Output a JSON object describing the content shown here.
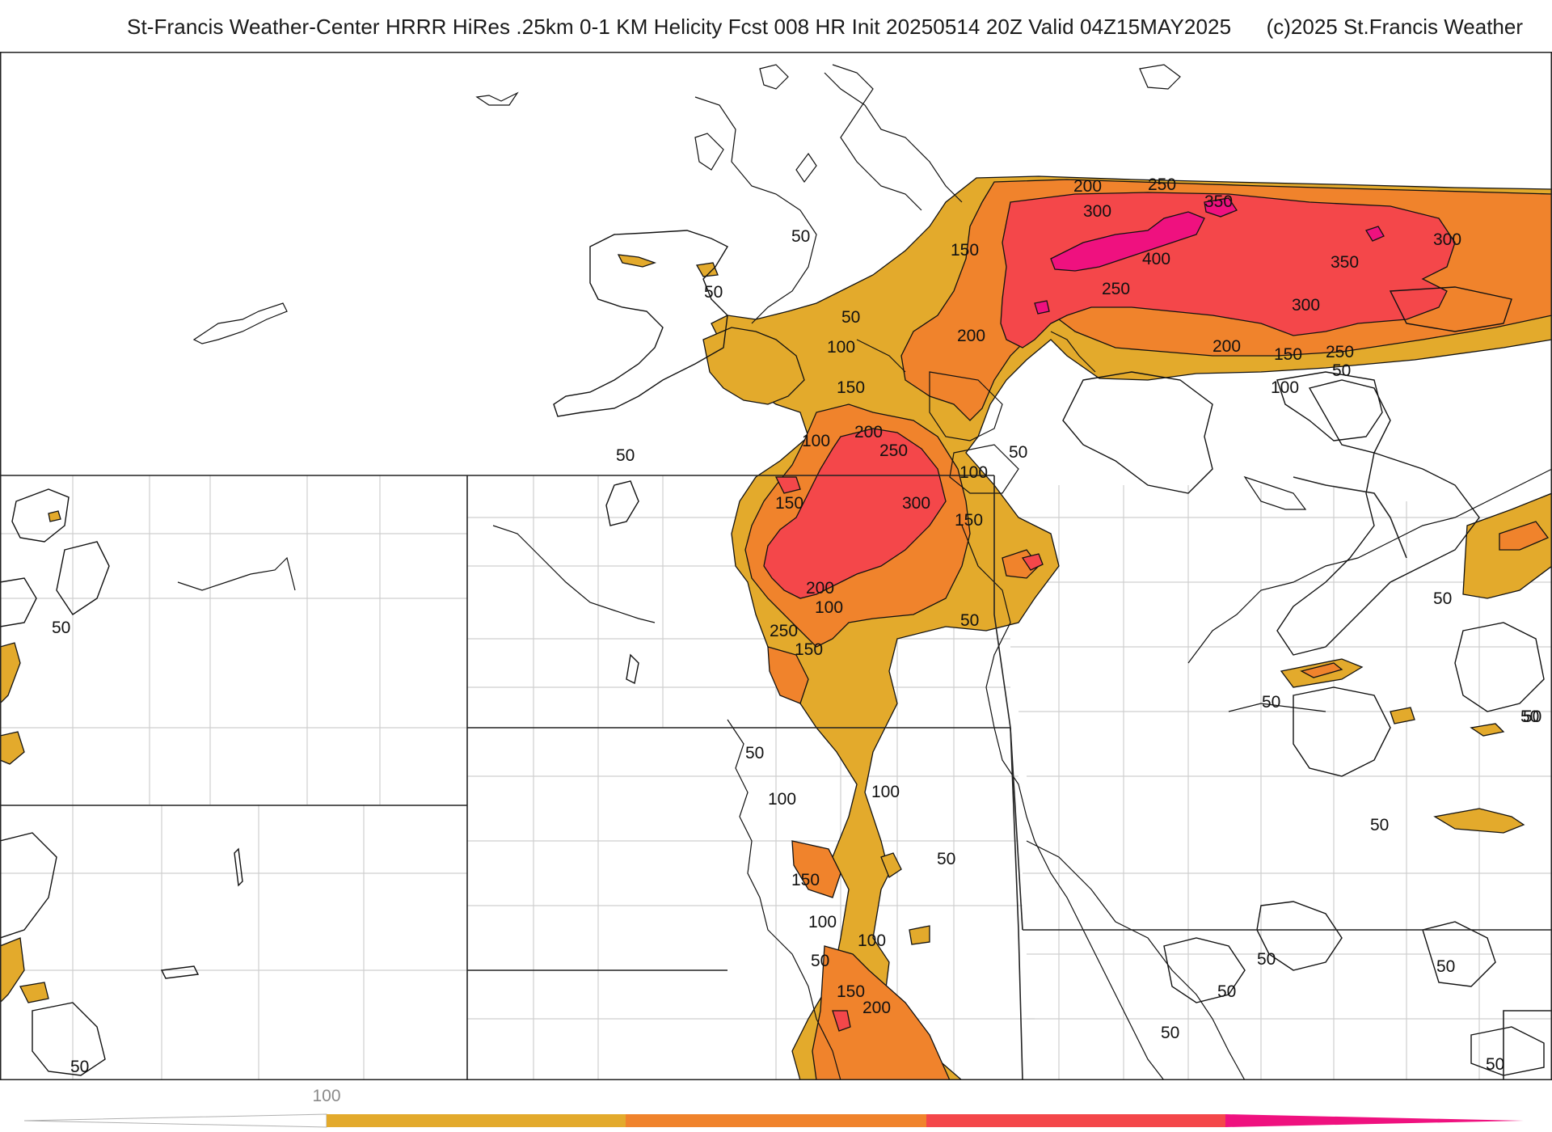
{
  "header": {
    "title": "St-Francis Weather-Center HRRR HiRes .25km 0-1 KM Helicity Fcst 008 HR Init 20250514 20Z  Valid 04Z15MAY2025",
    "copyright": "(c)2025 St.Francis Weather"
  },
  "colors": {
    "level_100": "#e3aa2c",
    "level_150": "#f0832c",
    "level_250": "#f4474a",
    "level_350": "#ef117f",
    "state_border": "#222222",
    "county_line": "#c9c9c9",
    "coastline": "#111111"
  },
  "colorbar": {
    "tick_label": "100",
    "segments": [
      "#e3aa2c",
      "#f0832c",
      "#f4474a",
      "#ef117f"
    ]
  },
  "contour_labels": [
    {
      "id": "c1",
      "text": "200"
    },
    {
      "id": "c2",
      "text": "250"
    },
    {
      "id": "c3",
      "text": "350"
    },
    {
      "id": "c4",
      "text": "300"
    },
    {
      "id": "c5",
      "text": "400"
    },
    {
      "id": "c6",
      "text": "300"
    },
    {
      "id": "c7",
      "text": "350"
    },
    {
      "id": "c8",
      "text": "250"
    },
    {
      "id": "c9",
      "text": "150"
    },
    {
      "id": "c10",
      "text": "50"
    },
    {
      "id": "c11",
      "text": "50"
    },
    {
      "id": "c12",
      "text": "50"
    },
    {
      "id": "c13",
      "text": "100"
    },
    {
      "id": "c14",
      "text": "200"
    },
    {
      "id": "c15",
      "text": "300"
    },
    {
      "id": "c16",
      "text": "200"
    },
    {
      "id": "c17",
      "text": "150"
    },
    {
      "id": "c18",
      "text": "250"
    },
    {
      "id": "c19",
      "text": "50"
    },
    {
      "id": "c20",
      "text": "100"
    },
    {
      "id": "c21",
      "text": "150"
    },
    {
      "id": "c22",
      "text": "100"
    },
    {
      "id": "c23",
      "text": "200"
    },
    {
      "id": "c24",
      "text": "250"
    },
    {
      "id": "c25",
      "text": "50"
    },
    {
      "id": "c26",
      "text": "50"
    },
    {
      "id": "c27",
      "text": "100"
    },
    {
      "id": "c28",
      "text": "150"
    },
    {
      "id": "c29",
      "text": "300"
    },
    {
      "id": "c30",
      "text": "150"
    },
    {
      "id": "c31",
      "text": "200"
    },
    {
      "id": "c32",
      "text": "100"
    },
    {
      "id": "c33",
      "text": "250"
    },
    {
      "id": "c34",
      "text": "150"
    },
    {
      "id": "c35",
      "text": "50"
    },
    {
      "id": "c36",
      "text": "50"
    },
    {
      "id": "c37",
      "text": "50"
    },
    {
      "id": "c38",
      "text": "50"
    },
    {
      "id": "c39",
      "text": "50"
    },
    {
      "id": "c40",
      "text": "100"
    },
    {
      "id": "c41",
      "text": "100"
    },
    {
      "id": "c42",
      "text": "50"
    },
    {
      "id": "c43",
      "text": "150"
    },
    {
      "id": "c44",
      "text": "100"
    },
    {
      "id": "c45",
      "text": "100"
    },
    {
      "id": "c46",
      "text": "50"
    },
    {
      "id": "c47",
      "text": "150"
    },
    {
      "id": "c48",
      "text": "200"
    },
    {
      "id": "c49",
      "text": "50"
    },
    {
      "id": "c50",
      "text": "50"
    },
    {
      "id": "c51",
      "text": "50"
    },
    {
      "id": "c52",
      "text": "50"
    },
    {
      "id": "c53",
      "text": "50"
    },
    {
      "id": "c54",
      "text": "50"
    },
    {
      "id": "c55",
      "text": "50"
    },
    {
      "id": "c56",
      "text": "50"
    },
    {
      "id": "c57",
      "text": "50"
    }
  ]
}
